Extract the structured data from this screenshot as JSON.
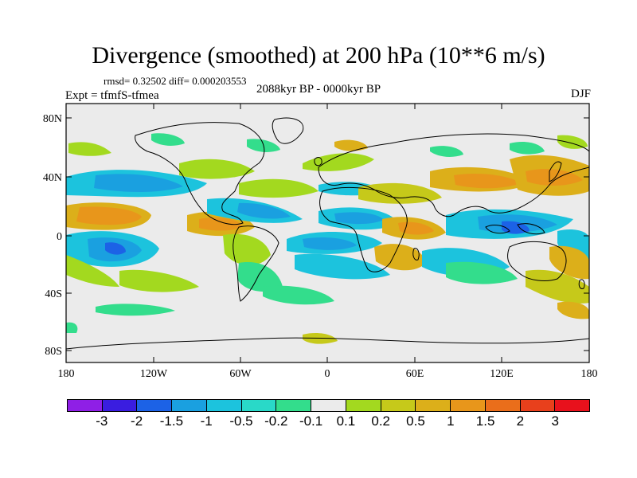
{
  "title": "Divergence (smoothed) at 200 hPa (10**6 m/s)",
  "stats": "rmsd= 0.32502 diff= 0.000203553",
  "experiment": "Expt = tfmfS-tfmea",
  "period": "2088kyr BP - 0000kyr BP",
  "season": "DJF",
  "axes": {
    "lat_ticks": [
      "80N",
      "40N",
      "0",
      "40S",
      "80S"
    ],
    "lon_ticks": [
      "180",
      "120W",
      "60W",
      "0",
      "60E",
      "120E",
      "180"
    ]
  },
  "colorbar": {
    "colors": [
      "#8f1fe6",
      "#3a1de0",
      "#1c62e6",
      "#1aa0e0",
      "#1cc3dd",
      "#29d9c8",
      "#33dd8c",
      "#ebebeb",
      "#a3d91f",
      "#c6c91a",
      "#dcaf1a",
      "#e8961b",
      "#ea6e1b",
      "#e8401c",
      "#e8111c"
    ],
    "labels": [
      "-3",
      "-2",
      "-1.5",
      "-1",
      "-0.5",
      "-0.2",
      "-0.1",
      "0.1",
      "0.2",
      "0.5",
      "1",
      "1.5",
      "2",
      "3"
    ]
  }
}
